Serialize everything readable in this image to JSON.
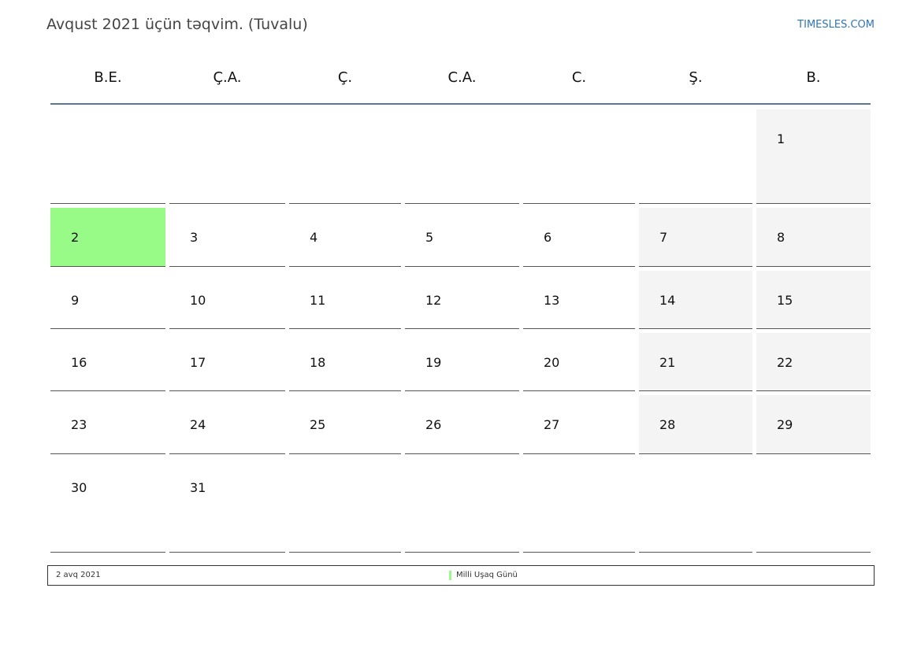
{
  "header": {
    "title": "Avqust 2021 üçün təqvim. (Tuvalu)",
    "site": "TIMESLES.COM"
  },
  "weekdays": [
    "B.E.",
    "Ç.A.",
    "Ç.",
    "C.A.",
    "C.",
    "Ş.",
    "B."
  ],
  "weeks": [
    [
      null,
      null,
      null,
      null,
      null,
      null,
      1
    ],
    [
      2,
      3,
      4,
      5,
      6,
      7,
      8
    ],
    [
      9,
      10,
      11,
      12,
      13,
      14,
      15
    ],
    [
      16,
      17,
      18,
      19,
      20,
      21,
      22
    ],
    [
      23,
      24,
      25,
      26,
      27,
      28,
      29
    ],
    [
      30,
      31,
      null,
      null,
      null,
      null,
      null
    ]
  ],
  "weekend_color": "#f4f4f4",
  "holiday": {
    "day": 2,
    "date_label": "2 avq 2021",
    "name": "Milli Uşaq Günü",
    "color": "#98fb88"
  }
}
